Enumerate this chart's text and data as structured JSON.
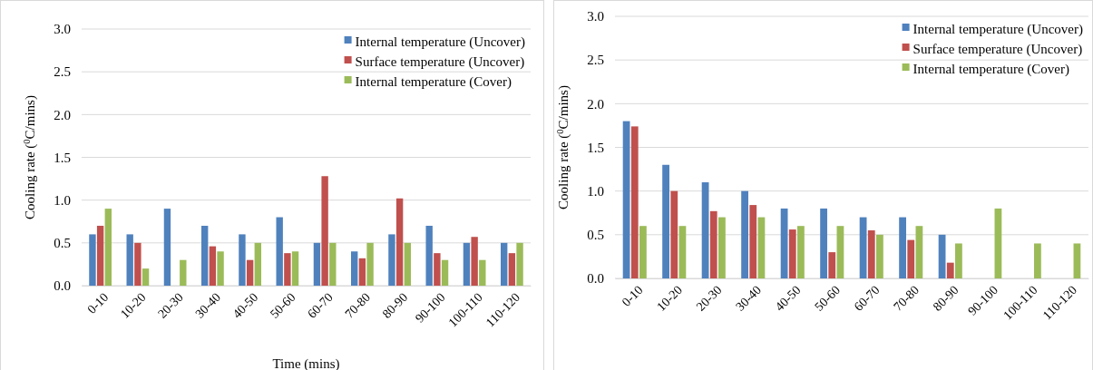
{
  "chart_data": [
    {
      "type": "bar",
      "xlabel": "Time  (mins)",
      "ylabel": "Cooling rate ($^{0}$C/mins)",
      "categories": [
        "0-10",
        "10-20",
        "20-30",
        "30-40",
        "40-50",
        "50-60",
        "60-70",
        "70-80",
        "80-90",
        "90-100",
        "100-110",
        "110-120"
      ],
      "ylim": [
        0,
        3
      ],
      "yticks": [
        {
          "value": 0,
          "label": "0.0"
        },
        {
          "value": 0.5,
          "label": "0.5"
        },
        {
          "value": 1,
          "label": "1.0"
        },
        {
          "value": 1.5,
          "label": "1.5"
        },
        {
          "value": 2,
          "label": "2.0"
        },
        {
          "value": 2.5,
          "label": "2.5"
        },
        {
          "value": 3,
          "label": "3.0"
        }
      ],
      "grid": "y",
      "legend": "top right",
      "series": [
        {
          "name": "Internal temperature (Uncover)",
          "color": "#4f81bd",
          "values": [
            0.6,
            0.6,
            0.9,
            0.7,
            0.6,
            0.8,
            0.5,
            0.4,
            0.6,
            0.7,
            0.5,
            0.5
          ]
        },
        {
          "name": "Surface temperature (Uncover)",
          "color": "#c0504d",
          "values": [
            0.7,
            0.5,
            null,
            0.46,
            0.3,
            0.38,
            1.28,
            0.32,
            1.02,
            0.38,
            0.57,
            0.38
          ]
        },
        {
          "name": "Internal temperature (Cover)",
          "color": "#9bbb59",
          "values": [
            0.9,
            0.2,
            0.3,
            0.4,
            0.5,
            0.4,
            0.5,
            0.5,
            0.5,
            0.3,
            0.3,
            0.5
          ]
        }
      ]
    },
    {
      "type": "bar",
      "ylabel": "Cooling rate ($^{0}$C/mins)",
      "categories": [
        "0-10",
        "10-20",
        "20-30",
        "30-40",
        "40-50",
        "50-60",
        "60-70",
        "70-80",
        "80-90",
        "90-100",
        "100-110",
        "110-120"
      ],
      "ylim": [
        0,
        3
      ],
      "yticks": [
        {
          "value": 0,
          "label": "0.0"
        },
        {
          "value": 0.5,
          "label": "0.5"
        },
        {
          "value": 1,
          "label": "1.0"
        },
        {
          "value": 1.5,
          "label": "1.5"
        },
        {
          "value": 2,
          "label": "2.0"
        },
        {
          "value": 2.5,
          "label": "2.5"
        },
        {
          "value": 3,
          "label": "3.0"
        }
      ],
      "grid": "y",
      "legend": "top right",
      "series": [
        {
          "name": "Internal temperature (Uncover)",
          "color": "#4f81bd",
          "values": [
            1.8,
            1.3,
            1.1,
            1.0,
            0.8,
            0.8,
            0.7,
            0.7,
            0.5,
            null,
            null,
            null
          ]
        },
        {
          "name": "Surface temperature (Uncover)",
          "color": "#c0504d",
          "values": [
            1.74,
            1.0,
            0.77,
            0.84,
            0.56,
            0.3,
            0.55,
            0.44,
            0.18,
            null,
            null,
            null
          ]
        },
        {
          "name": "Internal temperature (Cover)",
          "color": "#9bbb59",
          "values": [
            0.6,
            0.6,
            0.7,
            0.7,
            0.6,
            0.6,
            0.5,
            0.6,
            0.4,
            0.8,
            0.4,
            0.4
          ]
        }
      ]
    }
  ]
}
